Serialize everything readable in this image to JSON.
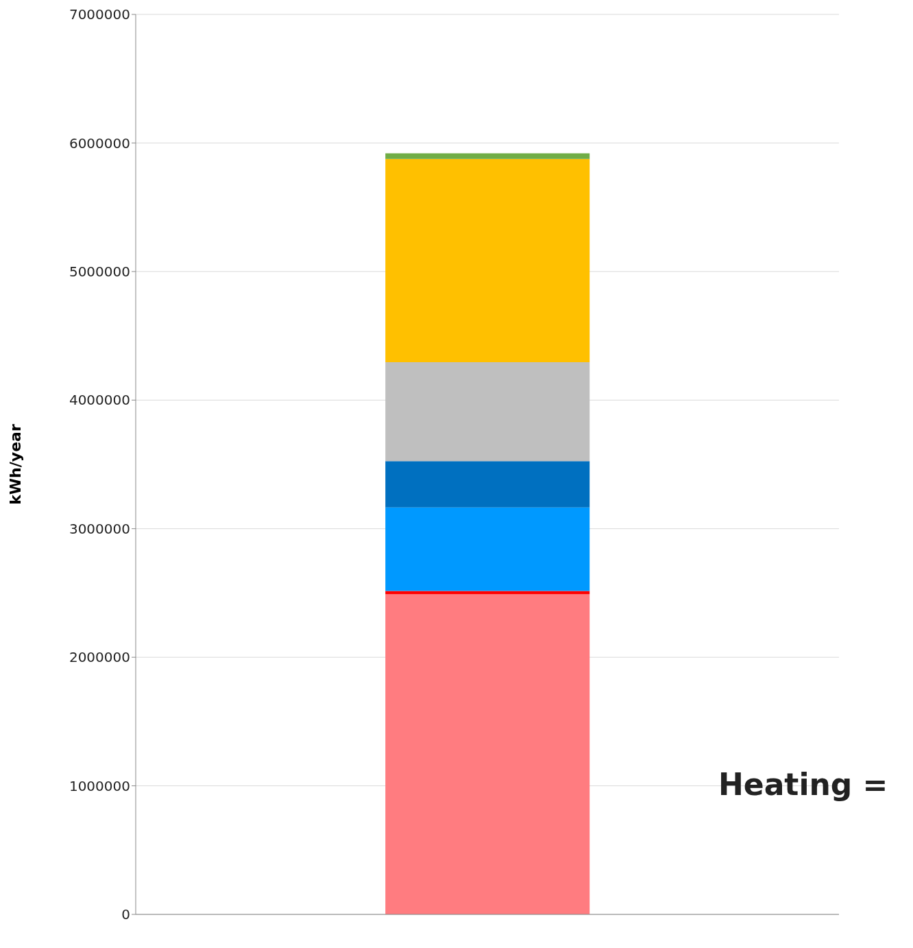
{
  "chart_data": {
    "type": "bar",
    "stacked": true,
    "ylabel": "kWh/year",
    "categories": [
      null
    ],
    "series": [
      {
        "color": "#ff7c80",
        "values": [
          2490000
        ]
      },
      {
        "color": "#ff0000",
        "values": [
          25000
        ]
      },
      {
        "color": "#0099ff",
        "values": [
          650000
        ]
      },
      {
        "color": "#0070c0",
        "values": [
          360000
        ]
      },
      {
        "color": "#bfbfbf",
        "values": [
          770000
        ]
      },
      {
        "color": "#ffc000",
        "values": [
          1580000
        ]
      },
      {
        "color": "#70ad47",
        "values": [
          45000
        ]
      }
    ],
    "ylim": [
      0,
      7000000
    ],
    "yticks": [
      0,
      1000000,
      2000000,
      3000000,
      4000000,
      5000000,
      6000000,
      7000000
    ],
    "grid": "y",
    "legend": false,
    "annotations": [
      "Heating ="
    ]
  }
}
